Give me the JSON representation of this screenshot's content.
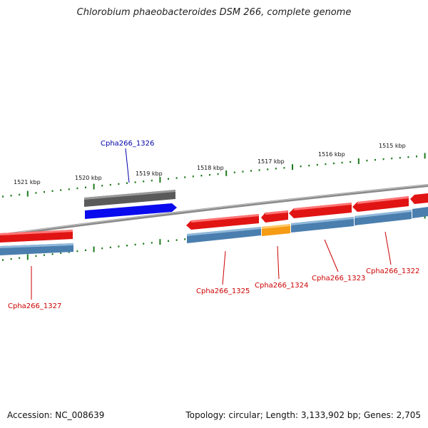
{
  "title": "Chlorobium phaeobacteroides DSM 266, complete genome",
  "footer": {
    "accession": "Accession: NC_008639",
    "summary": "Topology: circular; Length: 3,133,902 bp; Genes: 2,705"
  },
  "colors": {
    "backbone": "#8a8a8a",
    "tick": "#1e7a1e",
    "gene_plus": "#e11414",
    "gene_plus_highlight": "#ff6a6a",
    "rna_steel": "#4a7eae",
    "rna_steel_highlight": "#8fb8da",
    "pseudo_gray": "#5a5a5a",
    "selected": "#0a0aee",
    "orange": "#f59b14",
    "label_red": "#cc0000",
    "label_blue": "#0000aa"
  },
  "scale_labels": [
    "1521 kbp",
    "1520 kbp",
    "1519 kbp",
    "1518 kbp",
    "1517 kbp",
    "1516 kbp",
    "1515 kbp"
  ],
  "genes": [
    {
      "label": "Cpha266_1327",
      "color": "label_red"
    },
    {
      "label": "Cpha266_1326",
      "color": "label_blue"
    },
    {
      "label": "Cpha266_1325",
      "color": "label_red"
    },
    {
      "label": "Cpha266_1324",
      "color": "label_red"
    },
    {
      "label": "Cpha266_1323",
      "color": "label_red"
    },
    {
      "label": "Cpha266_1322",
      "color": "label_red"
    }
  ]
}
